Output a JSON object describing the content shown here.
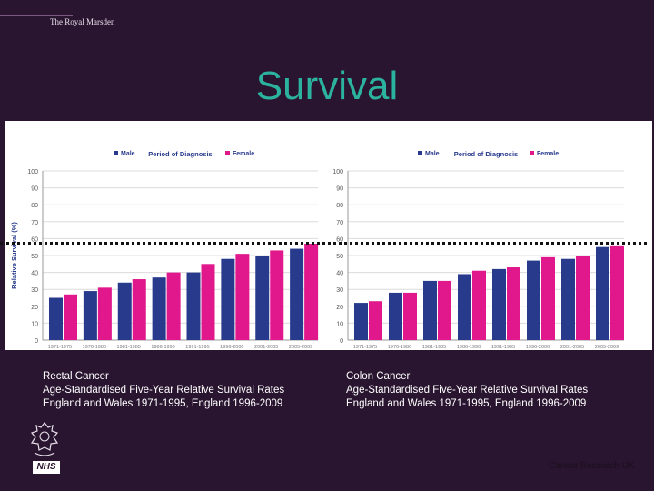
{
  "header": {
    "brand": "The Royal Marsden",
    "title": "Survival"
  },
  "footer": {
    "credit": "Cancer Research UK",
    "nhs": "NHS"
  },
  "captions": [
    {
      "name": "Rectal Cancer",
      "line1": "Age-Standardised Five-Year Relative Survival Rates",
      "line2": "England and Wales 1971-1995, England 1996-2009"
    },
    {
      "name": "Colon Cancer",
      "line1": "Age-Standardised Five-Year Relative Survival Rates",
      "line2": "England and Wales 1971-1995, England 1996-2009"
    }
  ],
  "chart_data": [
    {
      "type": "bar",
      "xlabel": "Period of Diagnosis",
      "ylabel": "Relative Survival (%)",
      "ylim": [
        0,
        100
      ],
      "yticks": [
        0,
        10,
        20,
        30,
        40,
        50,
        60,
        70,
        80,
        90,
        100
      ],
      "legend_position": "top",
      "grid": true,
      "categories": [
        "1971-1975",
        "1976-1980",
        "1981-1985",
        "1986-1990",
        "1991-1995",
        "1996-2000",
        "2001-2005",
        "2005-2009"
      ],
      "series": [
        {
          "name": "Male",
          "color": "#283a8c",
          "values": [
            25,
            29,
            34,
            37,
            40,
            48,
            50,
            54
          ]
        },
        {
          "name": "Female",
          "color": "#e0188c",
          "values": [
            27,
            31,
            36,
            40,
            45,
            51,
            53,
            57
          ]
        }
      ]
    },
    {
      "type": "bar",
      "xlabel": "Period of Diagnosis",
      "ylabel": "",
      "ylim": [
        0,
        100
      ],
      "yticks": [
        0,
        10,
        20,
        30,
        40,
        50,
        60,
        70,
        80,
        90,
        100
      ],
      "legend_position": "top",
      "grid": true,
      "categories": [
        "1971-1975",
        "1976-1980",
        "1981-1985",
        "1986-1990",
        "1991-1995",
        "1996-2000",
        "2001-2005",
        "2005-2009"
      ],
      "series": [
        {
          "name": "Male",
          "color": "#283a8c",
          "values": [
            22,
            28,
            35,
            39,
            42,
            47,
            48,
            55
          ]
        },
        {
          "name": "Female",
          "color": "#e0188c",
          "values": [
            23,
            28,
            35,
            41,
            43,
            49,
            50,
            56
          ]
        }
      ]
    }
  ]
}
